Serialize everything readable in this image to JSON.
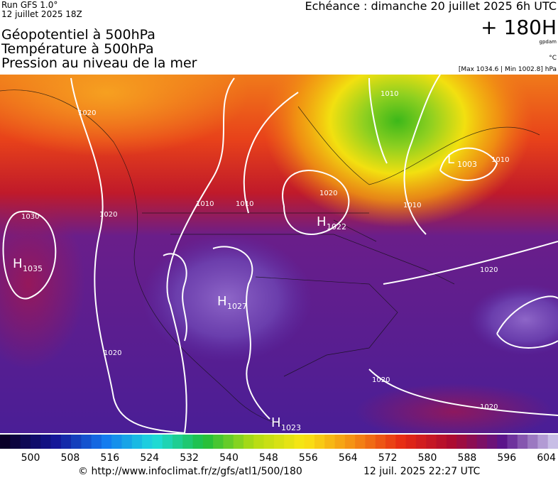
{
  "header": {
    "run": "Run GFS 1.0°",
    "run_date": "12 juillet 2025 18Z",
    "title_lines": [
      "Géopotentiel à 500hPa",
      "Température à 500hPa",
      "Pression au niveau de la mer"
    ],
    "valid": "Echéance : dimanche 20 juillet 2025 6h UTC",
    "lead": "+ 180H",
    "unit_geo": "gpdam",
    "unit_temp": "°C",
    "pressure_range": "[Max 1034.6 | Min 1002.8] hPa"
  },
  "map": {
    "centers": [
      {
        "letter": "H",
        "value": "1035"
      },
      {
        "letter": "H",
        "value": "1022"
      },
      {
        "letter": "H",
        "value": "1027"
      },
      {
        "letter": "H",
        "value": "1023"
      },
      {
        "letter": "L",
        "value": "1003"
      }
    ],
    "isobar_labels": [
      "1020",
      "1030",
      "1020",
      "1010",
      "1010",
      "1020",
      "1010",
      "1010",
      "1020",
      "1020",
      "1020",
      "1020",
      "1010"
    ]
  },
  "colorbar": {
    "labels": [
      "500",
      "508",
      "516",
      "524",
      "532",
      "540",
      "548",
      "556",
      "564",
      "572",
      "580",
      "588",
      "596",
      "604"
    ]
  },
  "footer": {
    "source": "© http://www.infoclimat.fr/z/gfs/atl1/500/180",
    "generated": "12 juil. 2025 22:27 UTC"
  }
}
